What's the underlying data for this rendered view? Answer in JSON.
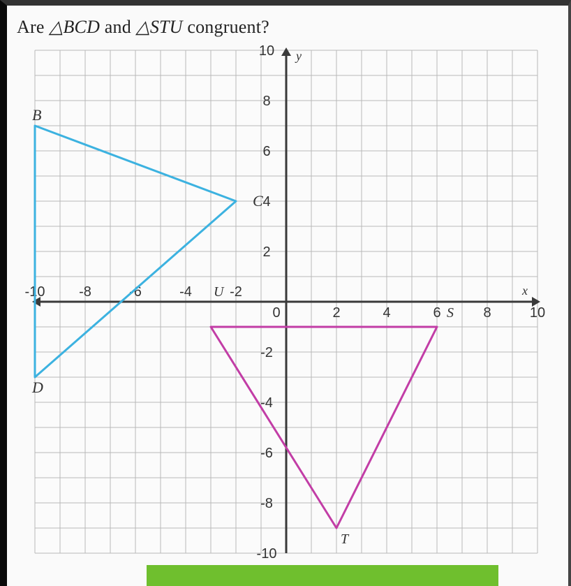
{
  "question": {
    "prefix": "Are ",
    "tri1": "△BCD",
    "mid": " and ",
    "tri2": "△STU",
    "suffix": " congruent?"
  },
  "chart": {
    "type": "scatter",
    "background_color": "#fbfbfb",
    "grid_color": "#b8b8b8",
    "axis_color": "#3a3a3a",
    "axis_width": 3,
    "grid_width": 1,
    "xlim": [
      -10,
      10
    ],
    "ylim": [
      -10,
      10
    ],
    "tick_step": 2,
    "axis_labels": {
      "x": "x",
      "y": "y",
      "font_size": 18,
      "color": "#333",
      "style": "italic"
    },
    "tick_font_size": 20,
    "tick_color": "#333",
    "xtick_labels_neg": [
      "-10",
      "-8",
      "-6",
      "-4",
      "-2"
    ],
    "xtick_labels_pos": [
      "2",
      "4",
      "6",
      "8",
      "10"
    ],
    "ytick_labels_pos": [
      "2",
      "4",
      "6",
      "8",
      "10"
    ],
    "ytick_labels_neg": [
      "-2",
      "-4",
      "-6",
      "-8",
      "-10"
    ],
    "x_point_extras": {
      "U_label": "U",
      "S_label": "S"
    },
    "triangles": {
      "BCD": {
        "color": "#3cb2e0",
        "stroke_width": 3,
        "vertices": {
          "B": [
            -10,
            7
          ],
          "C": [
            -2,
            4
          ],
          "D": [
            -10,
            -3
          ]
        },
        "label_font_size": 22,
        "label_style": "italic"
      },
      "STU": {
        "color": "#c23da6",
        "stroke_width": 3,
        "vertices": {
          "S": [
            6,
            -1
          ],
          "T": [
            2,
            -9
          ],
          "U": [
            -3,
            -1
          ]
        },
        "label_font_size": 22,
        "label_style": "italic"
      }
    }
  }
}
